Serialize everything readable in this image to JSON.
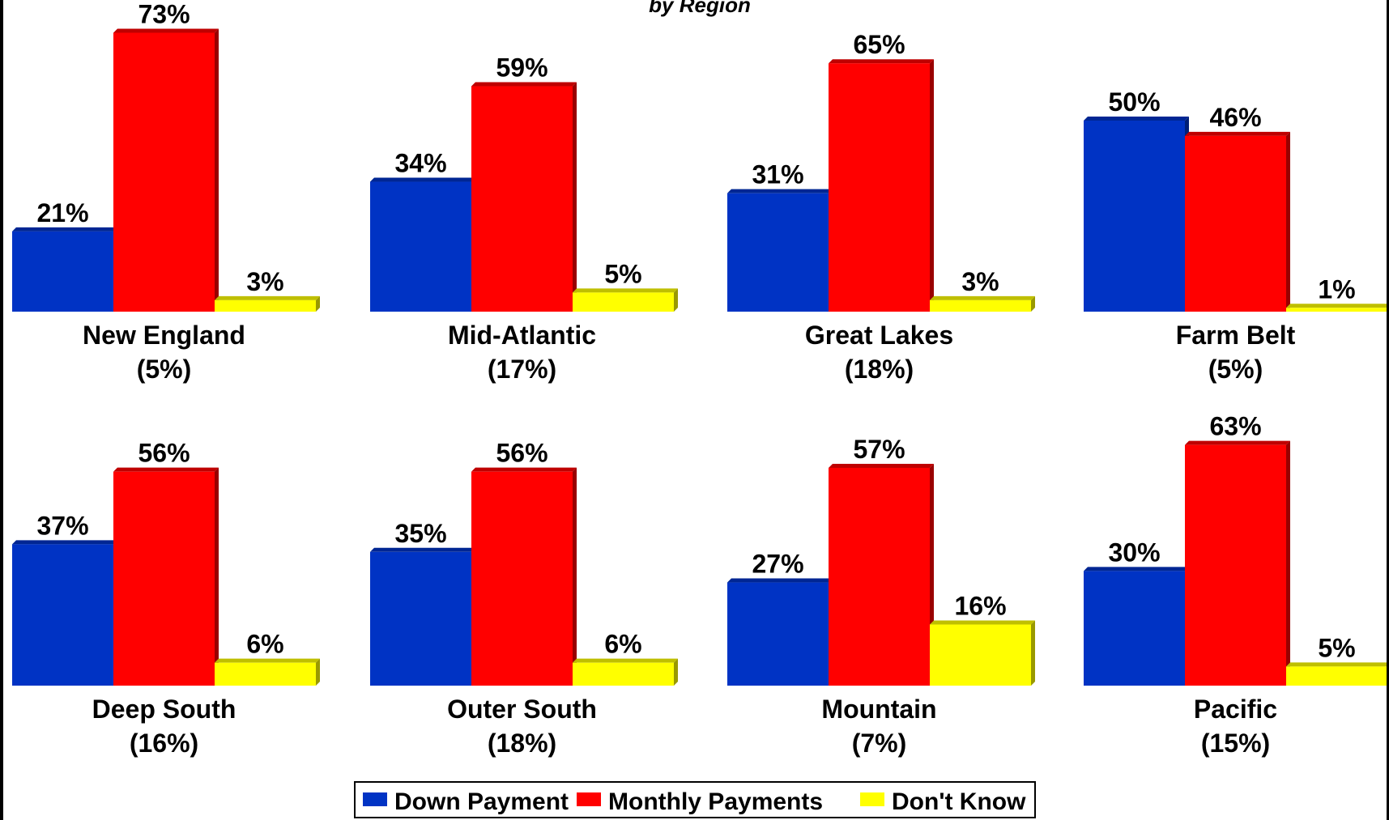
{
  "title_visible_fragment": "by Region",
  "colors": {
    "down_payment": "#0033c4",
    "monthly_payments": "#ff0000",
    "dont_know": "#ffff00"
  },
  "legend": {
    "items": [
      {
        "label": "Down Payment",
        "color": "#0033c4"
      },
      {
        "label": "Monthly Payments",
        "color": "#ff0000"
      },
      {
        "label": "Don't Know",
        "color": "#ffff00"
      }
    ]
  },
  "chart_data": {
    "type": "bar",
    "subtitle": "by Region",
    "value_suffix": "%",
    "legend_position": "bottom",
    "grid": false,
    "ylim": [
      0,
      80
    ],
    "series_names": [
      "Down Payment",
      "Monthly Payments",
      "Don't Know"
    ],
    "panels": [
      {
        "region": "New England",
        "share": "(5%)",
        "values": [
          21,
          73,
          3
        ]
      },
      {
        "region": "Mid-Atlantic",
        "share": "(17%)",
        "values": [
          34,
          59,
          5
        ]
      },
      {
        "region": "Great Lakes",
        "share": "(18%)",
        "values": [
          31,
          65,
          3
        ]
      },
      {
        "region": "Farm Belt",
        "share": "(5%)",
        "values": [
          50,
          46,
          1
        ]
      },
      {
        "region": "Deep South",
        "share": "(16%)",
        "values": [
          37,
          56,
          6
        ]
      },
      {
        "region": "Outer South",
        "share": "(18%)",
        "values": [
          35,
          56,
          6
        ]
      },
      {
        "region": "Mountain",
        "share": "(7%)",
        "values": [
          27,
          57,
          16
        ]
      },
      {
        "region": "Pacific",
        "share": "(15%)",
        "values": [
          30,
          63,
          5
        ]
      }
    ]
  }
}
